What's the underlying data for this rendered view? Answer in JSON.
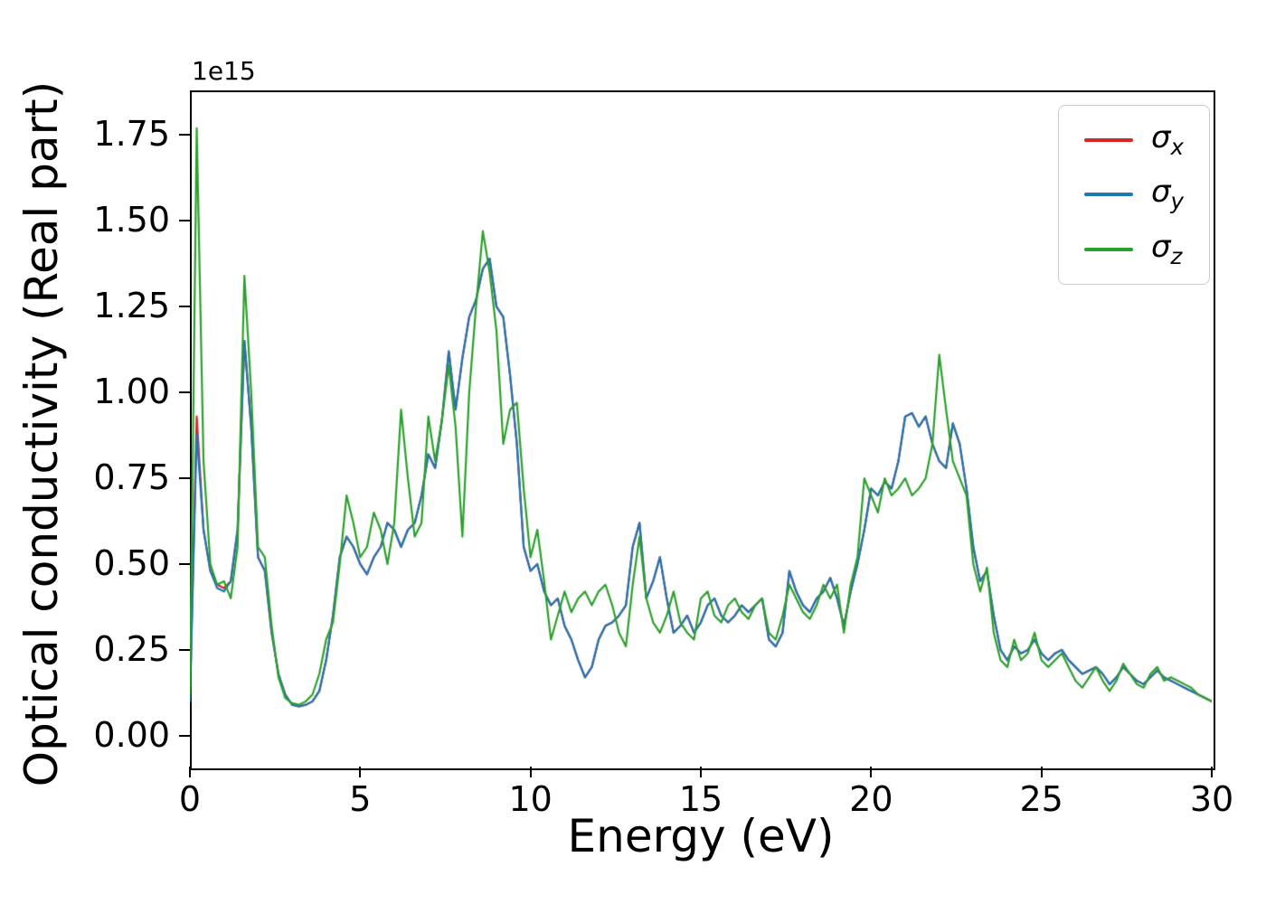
{
  "figure": {
    "background": "#ffffff"
  },
  "chart_data": {
    "type": "line",
    "title": "",
    "xlabel": "Energy (eV)",
    "ylabel": "Optical conductivity (Real part)",
    "offset_text": "1e15",
    "y_unit_multiplier": 1000000000000000.0,
    "xlim": [
      0,
      30
    ],
    "ylim": [
      -0.09,
      1.88
    ],
    "grid": false,
    "xticks": [
      0,
      5,
      10,
      15,
      20,
      25,
      30
    ],
    "xtick_labels": [
      "0",
      "5",
      "10",
      "15",
      "20",
      "25",
      "30"
    ],
    "yticks": [
      0.0,
      0.25,
      0.5,
      0.75,
      1.0,
      1.25,
      1.5,
      1.75
    ],
    "ytick_labels": [
      "0.00",
      "0.25",
      "0.50",
      "0.75",
      "1.00",
      "1.25",
      "1.50",
      "1.75"
    ],
    "legend": {
      "position": "upper right",
      "entries": [
        {
          "label": "σ_x",
          "symbol": "σ",
          "sub": "x",
          "color": "#d62728"
        },
        {
          "label": "σ_y",
          "symbol": "σ",
          "sub": "y",
          "color": "#1f77b4"
        },
        {
          "label": "σ_z",
          "symbol": "σ",
          "sub": "z",
          "color": "#2ca02c"
        }
      ]
    },
    "x": [
      0.0,
      0.2,
      0.4,
      0.6,
      0.8,
      1.0,
      1.2,
      1.4,
      1.6,
      1.8,
      2.0,
      2.2,
      2.4,
      2.6,
      2.8,
      3.0,
      3.2,
      3.4,
      3.6,
      3.8,
      4.0,
      4.2,
      4.4,
      4.6,
      4.8,
      5.0,
      5.2,
      5.4,
      5.6,
      5.8,
      6.0,
      6.2,
      6.4,
      6.6,
      6.8,
      7.0,
      7.2,
      7.4,
      7.6,
      7.8,
      8.0,
      8.2,
      8.4,
      8.6,
      8.8,
      9.0,
      9.2,
      9.4,
      9.6,
      9.8,
      10.0,
      10.2,
      10.4,
      10.6,
      10.8,
      11.0,
      11.2,
      11.4,
      11.6,
      11.8,
      12.0,
      12.2,
      12.4,
      12.6,
      12.8,
      13.0,
      13.2,
      13.4,
      13.6,
      13.8,
      14.0,
      14.2,
      14.4,
      14.6,
      14.8,
      15.0,
      15.2,
      15.4,
      15.6,
      15.8,
      16.0,
      16.2,
      16.4,
      16.6,
      16.8,
      17.0,
      17.2,
      17.4,
      17.6,
      17.8,
      18.0,
      18.2,
      18.4,
      18.6,
      18.8,
      19.0,
      19.2,
      19.4,
      19.6,
      19.8,
      20.0,
      20.2,
      20.4,
      20.6,
      20.8,
      21.0,
      21.2,
      21.4,
      21.6,
      21.8,
      22.0,
      22.2,
      22.4,
      22.6,
      22.8,
      23.0,
      23.2,
      23.4,
      23.6,
      23.8,
      24.0,
      24.2,
      24.4,
      24.6,
      24.8,
      25.0,
      25.2,
      25.4,
      25.6,
      25.8,
      26.0,
      26.2,
      26.4,
      26.6,
      26.8,
      27.0,
      27.2,
      27.4,
      27.6,
      27.8,
      28.0,
      28.2,
      28.4,
      28.6,
      28.8,
      29.0,
      29.2,
      29.4,
      29.6,
      29.8,
      30.0
    ],
    "series": [
      {
        "name": "σ_x",
        "color": "#d62728",
        "values": [
          0.1,
          0.93,
          0.6,
          0.48,
          0.44,
          0.43,
          0.45,
          0.6,
          1.15,
          0.9,
          0.52,
          0.48,
          0.3,
          0.18,
          0.12,
          0.09,
          0.085,
          0.09,
          0.1,
          0.13,
          0.22,
          0.35,
          0.52,
          0.58,
          0.55,
          0.5,
          0.47,
          0.52,
          0.55,
          0.62,
          0.6,
          0.55,
          0.6,
          0.62,
          0.7,
          0.82,
          0.78,
          0.92,
          1.12,
          0.95,
          1.1,
          1.22,
          1.27,
          1.36,
          1.39,
          1.25,
          1.22,
          1.05,
          0.85,
          0.55,
          0.48,
          0.5,
          0.42,
          0.38,
          0.4,
          0.32,
          0.28,
          0.22,
          0.17,
          0.2,
          0.28,
          0.32,
          0.33,
          0.35,
          0.38,
          0.55,
          0.62,
          0.4,
          0.45,
          0.52,
          0.4,
          0.3,
          0.32,
          0.35,
          0.3,
          0.33,
          0.38,
          0.4,
          0.35,
          0.33,
          0.35,
          0.38,
          0.36,
          0.38,
          0.4,
          0.28,
          0.26,
          0.3,
          0.48,
          0.42,
          0.38,
          0.36,
          0.4,
          0.42,
          0.46,
          0.4,
          0.32,
          0.42,
          0.5,
          0.6,
          0.72,
          0.7,
          0.74,
          0.72,
          0.8,
          0.93,
          0.94,
          0.9,
          0.93,
          0.85,
          0.8,
          0.78,
          0.91,
          0.85,
          0.72,
          0.55,
          0.45,
          0.48,
          0.35,
          0.25,
          0.22,
          0.26,
          0.24,
          0.25,
          0.28,
          0.24,
          0.22,
          0.24,
          0.25,
          0.22,
          0.2,
          0.18,
          0.19,
          0.2,
          0.18,
          0.15,
          0.17,
          0.2,
          0.18,
          0.16,
          0.15,
          0.17,
          0.19,
          0.17,
          0.16,
          0.15,
          0.14,
          0.13,
          0.12,
          0.11,
          0.1
        ]
      },
      {
        "name": "σ_y",
        "color": "#1f77b4",
        "values": [
          0.1,
          0.88,
          0.6,
          0.48,
          0.43,
          0.42,
          0.45,
          0.6,
          1.15,
          0.9,
          0.52,
          0.48,
          0.3,
          0.18,
          0.12,
          0.09,
          0.085,
          0.09,
          0.1,
          0.13,
          0.22,
          0.35,
          0.52,
          0.58,
          0.55,
          0.5,
          0.47,
          0.52,
          0.55,
          0.62,
          0.6,
          0.55,
          0.6,
          0.62,
          0.7,
          0.82,
          0.78,
          0.92,
          1.12,
          0.95,
          1.1,
          1.22,
          1.27,
          1.36,
          1.39,
          1.25,
          1.22,
          1.05,
          0.85,
          0.55,
          0.48,
          0.5,
          0.42,
          0.38,
          0.4,
          0.32,
          0.28,
          0.22,
          0.17,
          0.2,
          0.28,
          0.32,
          0.33,
          0.35,
          0.38,
          0.55,
          0.62,
          0.4,
          0.45,
          0.52,
          0.4,
          0.3,
          0.32,
          0.35,
          0.3,
          0.33,
          0.38,
          0.4,
          0.35,
          0.33,
          0.35,
          0.38,
          0.36,
          0.38,
          0.4,
          0.28,
          0.26,
          0.3,
          0.48,
          0.42,
          0.38,
          0.36,
          0.4,
          0.42,
          0.46,
          0.4,
          0.32,
          0.42,
          0.5,
          0.6,
          0.72,
          0.7,
          0.74,
          0.72,
          0.8,
          0.93,
          0.94,
          0.9,
          0.93,
          0.85,
          0.8,
          0.78,
          0.91,
          0.85,
          0.72,
          0.55,
          0.45,
          0.48,
          0.35,
          0.25,
          0.22,
          0.26,
          0.24,
          0.25,
          0.28,
          0.24,
          0.22,
          0.24,
          0.25,
          0.22,
          0.2,
          0.18,
          0.19,
          0.2,
          0.18,
          0.15,
          0.17,
          0.2,
          0.18,
          0.16,
          0.15,
          0.17,
          0.19,
          0.17,
          0.16,
          0.15,
          0.14,
          0.13,
          0.12,
          0.11,
          0.1
        ]
      },
      {
        "name": "σ_z",
        "color": "#2ca02c",
        "values": [
          0.12,
          1.77,
          0.8,
          0.5,
          0.44,
          0.45,
          0.4,
          0.55,
          1.34,
          1.0,
          0.55,
          0.52,
          0.32,
          0.17,
          0.11,
          0.095,
          0.09,
          0.1,
          0.12,
          0.18,
          0.28,
          0.33,
          0.5,
          0.7,
          0.62,
          0.52,
          0.55,
          0.65,
          0.6,
          0.5,
          0.62,
          0.95,
          0.75,
          0.58,
          0.62,
          0.93,
          0.8,
          0.92,
          1.08,
          0.9,
          0.58,
          1.0,
          1.25,
          1.47,
          1.35,
          1.18,
          0.85,
          0.95,
          0.97,
          0.72,
          0.52,
          0.6,
          0.45,
          0.28,
          0.35,
          0.42,
          0.36,
          0.4,
          0.42,
          0.38,
          0.42,
          0.44,
          0.38,
          0.3,
          0.26,
          0.44,
          0.58,
          0.4,
          0.33,
          0.3,
          0.35,
          0.42,
          0.33,
          0.3,
          0.28,
          0.4,
          0.42,
          0.35,
          0.33,
          0.38,
          0.4,
          0.36,
          0.34,
          0.38,
          0.4,
          0.3,
          0.28,
          0.35,
          0.44,
          0.4,
          0.36,
          0.34,
          0.38,
          0.44,
          0.4,
          0.44,
          0.3,
          0.44,
          0.52,
          0.75,
          0.7,
          0.65,
          0.75,
          0.7,
          0.72,
          0.75,
          0.7,
          0.72,
          0.75,
          0.85,
          1.11,
          0.95,
          0.8,
          0.75,
          0.7,
          0.5,
          0.42,
          0.49,
          0.3,
          0.22,
          0.2,
          0.28,
          0.22,
          0.24,
          0.3,
          0.22,
          0.2,
          0.22,
          0.24,
          0.2,
          0.16,
          0.14,
          0.17,
          0.2,
          0.16,
          0.13,
          0.16,
          0.21,
          0.18,
          0.15,
          0.14,
          0.18,
          0.2,
          0.16,
          0.17,
          0.16,
          0.15,
          0.14,
          0.12,
          0.11,
          0.1
        ]
      }
    ]
  }
}
